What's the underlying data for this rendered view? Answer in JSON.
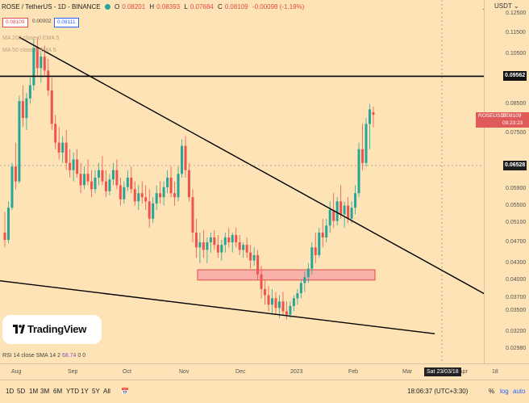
{
  "header": {
    "symbol": "ROSE / TetherUS - 1D - BINANCE",
    "open": "0.08201",
    "high": "0.08393",
    "low": "0.07684",
    "close": "0.08109",
    "change": "-0.00098 (-1.19%)",
    "bid": "0.08109",
    "spread": "0.00002",
    "ask": "0.08111"
  },
  "indicators": {
    "ma200": "MA 200 close 0 EMA 5",
    "ma50": "MA 50 close 0 EMA 5",
    "rsi_name": "RSI 14 close SMA 14 2",
    "rsi_value": "68.74",
    "rsi_extra1": "0",
    "rsi_extra2": "0"
  },
  "logo": {
    "text": "TradingView"
  },
  "price_axis": {
    "currency": "USDT",
    "ticks": [
      "0.12500",
      "0.11500",
      "0.10500",
      "0.08500",
      "0.07500",
      "0.05900",
      "0.05500",
      "0.05100",
      "0.04700",
      "0.04300",
      "0.04000",
      "0.03700",
      "0.03500",
      "0.03200",
      "0.02980"
    ],
    "line_label": "0.09562",
    "crosshair_label": "0.06528",
    "symbol_tag": "ROSEUSDT",
    "last_price": "0.08109",
    "countdown": "09:23:23"
  },
  "time_axis": {
    "ticks": [
      "Aug",
      "Sep",
      "Oct",
      "Nov",
      "Dec",
      "2023",
      "Feb",
      "Mar",
      "Apr",
      "18"
    ],
    "crosshair_date": "Sat 23/03/18"
  },
  "bottom_bar": {
    "ranges": [
      "1D",
      "5D",
      "1M",
      "3M",
      "6M",
      "YTD",
      "1Y",
      "5Y",
      "All"
    ],
    "time": "18:06:37 (UTC+3:30)",
    "percent": "%",
    "log": "log",
    "auto": "auto"
  },
  "colors": {
    "up": "#26a69a",
    "down": "#ef5350",
    "background": "#fde3b5",
    "zone": "#f7b1a8"
  },
  "chart_data": {
    "type": "candlestick",
    "candles": [
      {
        "o": 0.049,
        "h": 0.0535,
        "l": 0.046,
        "c": 0.0475
      },
      {
        "o": 0.0475,
        "h": 0.056,
        "l": 0.0468,
        "c": 0.0545
      },
      {
        "o": 0.0545,
        "h": 0.066,
        "l": 0.054,
        "c": 0.065
      },
      {
        "o": 0.065,
        "h": 0.072,
        "l": 0.059,
        "c": 0.061
      },
      {
        "o": 0.061,
        "h": 0.088,
        "l": 0.0605,
        "c": 0.086
      },
      {
        "o": 0.086,
        "h": 0.092,
        "l": 0.077,
        "c": 0.08
      },
      {
        "o": 0.08,
        "h": 0.089,
        "l": 0.076,
        "c": 0.087
      },
      {
        "o": 0.087,
        "h": 0.095,
        "l": 0.085,
        "c": 0.092
      },
      {
        "o": 0.092,
        "h": 0.112,
        "l": 0.09,
        "c": 0.108
      },
      {
        "o": 0.108,
        "h": 0.113,
        "l": 0.096,
        "c": 0.099
      },
      {
        "o": 0.099,
        "h": 0.106,
        "l": 0.093,
        "c": 0.104
      },
      {
        "o": 0.104,
        "h": 0.109,
        "l": 0.096,
        "c": 0.098
      },
      {
        "o": 0.098,
        "h": 0.103,
        "l": 0.088,
        "c": 0.09
      },
      {
        "o": 0.09,
        "h": 0.095,
        "l": 0.076,
        "c": 0.078
      },
      {
        "o": 0.078,
        "h": 0.081,
        "l": 0.07,
        "c": 0.072
      },
      {
        "o": 0.072,
        "h": 0.077,
        "l": 0.067,
        "c": 0.069
      },
      {
        "o": 0.069,
        "h": 0.074,
        "l": 0.066,
        "c": 0.072
      },
      {
        "o": 0.072,
        "h": 0.076,
        "l": 0.064,
        "c": 0.066
      },
      {
        "o": 0.066,
        "h": 0.07,
        "l": 0.062,
        "c": 0.064
      },
      {
        "o": 0.064,
        "h": 0.069,
        "l": 0.061,
        "c": 0.067
      },
      {
        "o": 0.067,
        "h": 0.07,
        "l": 0.062,
        "c": 0.063
      },
      {
        "o": 0.063,
        "h": 0.066,
        "l": 0.058,
        "c": 0.06
      },
      {
        "o": 0.06,
        "h": 0.065,
        "l": 0.059,
        "c": 0.063
      },
      {
        "o": 0.063,
        "h": 0.067,
        "l": 0.06,
        "c": 0.061
      },
      {
        "o": 0.061,
        "h": 0.064,
        "l": 0.057,
        "c": 0.059
      },
      {
        "o": 0.059,
        "h": 0.064,
        "l": 0.058,
        "c": 0.062
      },
      {
        "o": 0.062,
        "h": 0.066,
        "l": 0.06,
        "c": 0.064
      },
      {
        "o": 0.064,
        "h": 0.068,
        "l": 0.06,
        "c": 0.061
      },
      {
        "o": 0.061,
        "h": 0.064,
        "l": 0.057,
        "c": 0.0585
      },
      {
        "o": 0.0585,
        "h": 0.063,
        "l": 0.0575,
        "c": 0.0615
      },
      {
        "o": 0.0615,
        "h": 0.066,
        "l": 0.06,
        "c": 0.064
      },
      {
        "o": 0.064,
        "h": 0.067,
        "l": 0.059,
        "c": 0.06
      },
      {
        "o": 0.06,
        "h": 0.062,
        "l": 0.055,
        "c": 0.0565
      },
      {
        "o": 0.0565,
        "h": 0.061,
        "l": 0.0555,
        "c": 0.0595
      },
      {
        "o": 0.0595,
        "h": 0.064,
        "l": 0.0585,
        "c": 0.062
      },
      {
        "o": 0.062,
        "h": 0.065,
        "l": 0.058,
        "c": 0.059
      },
      {
        "o": 0.059,
        "h": 0.061,
        "l": 0.055,
        "c": 0.056
      },
      {
        "o": 0.056,
        "h": 0.06,
        "l": 0.054,
        "c": 0.058
      },
      {
        "o": 0.058,
        "h": 0.061,
        "l": 0.0555,
        "c": 0.057
      },
      {
        "o": 0.057,
        "h": 0.06,
        "l": 0.054,
        "c": 0.056
      },
      {
        "o": 0.056,
        "h": 0.059,
        "l": 0.05,
        "c": 0.052
      },
      {
        "o": 0.052,
        "h": 0.057,
        "l": 0.051,
        "c": 0.0555
      },
      {
        "o": 0.0555,
        "h": 0.06,
        "l": 0.054,
        "c": 0.058
      },
      {
        "o": 0.058,
        "h": 0.061,
        "l": 0.0555,
        "c": 0.057
      },
      {
        "o": 0.057,
        "h": 0.061,
        "l": 0.055,
        "c": 0.0595
      },
      {
        "o": 0.0595,
        "h": 0.064,
        "l": 0.058,
        "c": 0.062
      },
      {
        "o": 0.062,
        "h": 0.065,
        "l": 0.057,
        "c": 0.058
      },
      {
        "o": 0.058,
        "h": 0.061,
        "l": 0.055,
        "c": 0.057
      },
      {
        "o": 0.057,
        "h": 0.065,
        "l": 0.056,
        "c": 0.063
      },
      {
        "o": 0.063,
        "h": 0.073,
        "l": 0.062,
        "c": 0.071
      },
      {
        "o": 0.071,
        "h": 0.074,
        "l": 0.062,
        "c": 0.064
      },
      {
        "o": 0.064,
        "h": 0.066,
        "l": 0.056,
        "c": 0.057
      },
      {
        "o": 0.057,
        "h": 0.059,
        "l": 0.047,
        "c": 0.049
      },
      {
        "o": 0.049,
        "h": 0.052,
        "l": 0.044,
        "c": 0.046
      },
      {
        "o": 0.046,
        "h": 0.049,
        "l": 0.043,
        "c": 0.047
      },
      {
        "o": 0.047,
        "h": 0.0495,
        "l": 0.044,
        "c": 0.0455
      },
      {
        "o": 0.0455,
        "h": 0.048,
        "l": 0.043,
        "c": 0.047
      },
      {
        "o": 0.047,
        "h": 0.049,
        "l": 0.045,
        "c": 0.048
      },
      {
        "o": 0.048,
        "h": 0.0495,
        "l": 0.0455,
        "c": 0.0465
      },
      {
        "o": 0.0465,
        "h": 0.0485,
        "l": 0.044,
        "c": 0.045
      },
      {
        "o": 0.045,
        "h": 0.0475,
        "l": 0.0435,
        "c": 0.0465
      },
      {
        "o": 0.0465,
        "h": 0.049,
        "l": 0.045,
        "c": 0.048
      },
      {
        "o": 0.048,
        "h": 0.05,
        "l": 0.046,
        "c": 0.047
      },
      {
        "o": 0.047,
        "h": 0.049,
        "l": 0.045,
        "c": 0.0485
      },
      {
        "o": 0.0485,
        "h": 0.05,
        "l": 0.046,
        "c": 0.047
      },
      {
        "o": 0.047,
        "h": 0.0485,
        "l": 0.0445,
        "c": 0.0455
      },
      {
        "o": 0.0455,
        "h": 0.047,
        "l": 0.044,
        "c": 0.0465
      },
      {
        "o": 0.0465,
        "h": 0.048,
        "l": 0.044,
        "c": 0.045
      },
      {
        "o": 0.045,
        "h": 0.0465,
        "l": 0.042,
        "c": 0.0435
      },
      {
        "o": 0.0435,
        "h": 0.046,
        "l": 0.0425,
        "c": 0.0445
      },
      {
        "o": 0.0445,
        "h": 0.0455,
        "l": 0.04,
        "c": 0.041
      },
      {
        "o": 0.041,
        "h": 0.0425,
        "l": 0.037,
        "c": 0.0385
      },
      {
        "o": 0.0385,
        "h": 0.04,
        "l": 0.036,
        "c": 0.0375
      },
      {
        "o": 0.0375,
        "h": 0.039,
        "l": 0.035,
        "c": 0.036
      },
      {
        "o": 0.036,
        "h": 0.0385,
        "l": 0.0345,
        "c": 0.037
      },
      {
        "o": 0.037,
        "h": 0.038,
        "l": 0.0345,
        "c": 0.0355
      },
      {
        "o": 0.0355,
        "h": 0.0375,
        "l": 0.034,
        "c": 0.0365
      },
      {
        "o": 0.0365,
        "h": 0.038,
        "l": 0.0345,
        "c": 0.035
      },
      {
        "o": 0.035,
        "h": 0.0365,
        "l": 0.0338,
        "c": 0.0345
      },
      {
        "o": 0.0345,
        "h": 0.0365,
        "l": 0.034,
        "c": 0.0358
      },
      {
        "o": 0.0358,
        "h": 0.0375,
        "l": 0.035,
        "c": 0.037
      },
      {
        "o": 0.037,
        "h": 0.0385,
        "l": 0.036,
        "c": 0.0378
      },
      {
        "o": 0.0378,
        "h": 0.04,
        "l": 0.037,
        "c": 0.0395
      },
      {
        "o": 0.0395,
        "h": 0.0415,
        "l": 0.038,
        "c": 0.0405
      },
      {
        "o": 0.0405,
        "h": 0.043,
        "l": 0.0395,
        "c": 0.042
      },
      {
        "o": 0.042,
        "h": 0.047,
        "l": 0.041,
        "c": 0.046
      },
      {
        "o": 0.046,
        "h": 0.049,
        "l": 0.043,
        "c": 0.0445
      },
      {
        "o": 0.0445,
        "h": 0.05,
        "l": 0.044,
        "c": 0.049
      },
      {
        "o": 0.049,
        "h": 0.052,
        "l": 0.046,
        "c": 0.048
      },
      {
        "o": 0.048,
        "h": 0.052,
        "l": 0.047,
        "c": 0.0505
      },
      {
        "o": 0.0505,
        "h": 0.056,
        "l": 0.049,
        "c": 0.054
      },
      {
        "o": 0.054,
        "h": 0.058,
        "l": 0.05,
        "c": 0.0515
      },
      {
        "o": 0.0515,
        "h": 0.057,
        "l": 0.0505,
        "c": 0.056
      },
      {
        "o": 0.056,
        "h": 0.06,
        "l": 0.052,
        "c": 0.053
      },
      {
        "o": 0.053,
        "h": 0.056,
        "l": 0.05,
        "c": 0.055
      },
      {
        "o": 0.055,
        "h": 0.057,
        "l": 0.051,
        "c": 0.052
      },
      {
        "o": 0.052,
        "h": 0.056,
        "l": 0.051,
        "c": 0.0545
      },
      {
        "o": 0.0545,
        "h": 0.06,
        "l": 0.053,
        "c": 0.058
      },
      {
        "o": 0.058,
        "h": 0.072,
        "l": 0.057,
        "c": 0.07
      },
      {
        "o": 0.07,
        "h": 0.078,
        "l": 0.064,
        "c": 0.066
      },
      {
        "o": 0.066,
        "h": 0.08,
        "l": 0.065,
        "c": 0.078
      },
      {
        "o": 0.078,
        "h": 0.085,
        "l": 0.07,
        "c": 0.083
      },
      {
        "o": 0.082,
        "h": 0.0839,
        "l": 0.0768,
        "c": 0.0811
      }
    ],
    "horizontal_line": 0.09562,
    "crosshair_price": 0.06528,
    "zone": [
      0.04,
      0.0418
    ],
    "trendlines": [
      {
        "from": [
          4,
          0.113
        ],
        "to": [
          135,
          0.037
        ]
      },
      {
        "from": [
          -3,
          0.04
        ],
        "to": [
          119,
          0.0318
        ]
      }
    ],
    "ylim": [
      0.0298,
      0.128
    ],
    "log_scale": true,
    "grid": false
  }
}
